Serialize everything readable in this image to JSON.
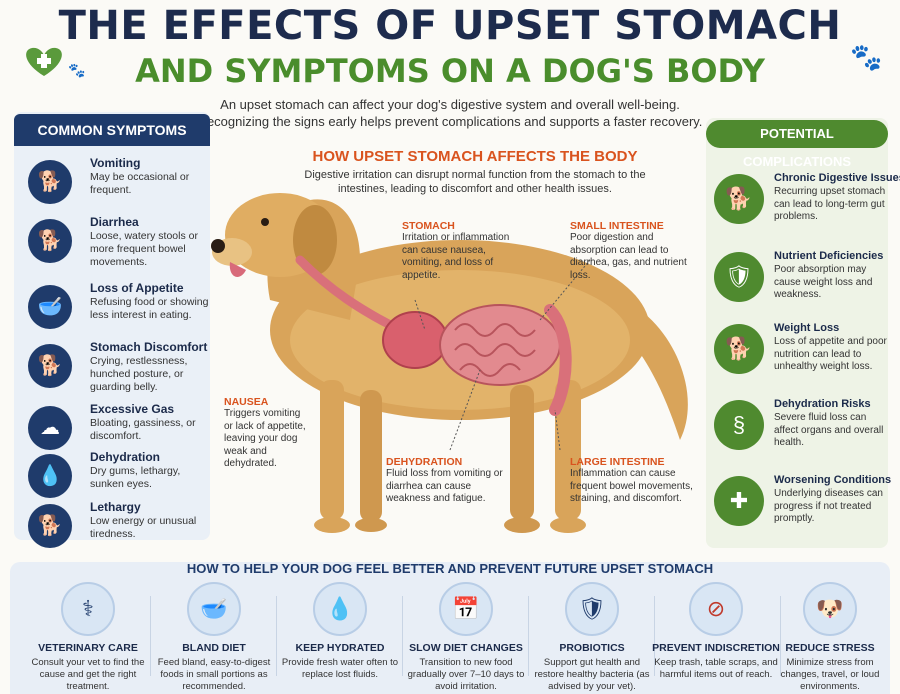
{
  "title_line1": "THE EFFECTS OF UPSET STOMACH",
  "title_line2": "AND SYMPTOMS ON A DOG'S BODY",
  "intro": [
    "An upset stomach can affect your dog's digestive system and overall well-being.",
    "Recognizing the signs early helps prevent complications and supports a faster recovery."
  ],
  "symptoms": {
    "heading": "COMMON SYMPTOMS",
    "items": [
      {
        "title": "Vomiting",
        "desc": "May be occasional or frequent.",
        "icon": "vomiting-dog-icon"
      },
      {
        "title": "Diarrhea",
        "desc": "Loose, watery stools or more frequent bowel movements.",
        "icon": "diarrhea-dog-icon"
      },
      {
        "title": "Loss of Appetite",
        "desc": "Refusing food or showing less interest in eating.",
        "icon": "food-bowl-icon"
      },
      {
        "title": "Stomach Discomfort",
        "desc": "Crying, restlessness, hunched posture, or guarding belly.",
        "icon": "uncomfortable-dog-icon"
      },
      {
        "title": "Excessive Gas",
        "desc": "Bloating, gassiness, or discomfort.",
        "icon": "gas-cloud-icon"
      },
      {
        "title": "Dehydration",
        "desc": "Dry gums, lethargy, sunken eyes.",
        "icon": "water-drop-icon"
      },
      {
        "title": "Lethargy",
        "desc": "Low energy or unusual tiredness.",
        "icon": "tired-dog-icon"
      }
    ]
  },
  "center": {
    "heading": "HOW UPSET STOMACH AFFECTS THE BODY",
    "desc": "Digestive irritation can disrupt normal function from the stomach to the intestines, leading to discomfort and other health issues.",
    "organs": {
      "stomach": {
        "title": "STOMACH",
        "desc": "Irritation or inflammation can cause nausea, vomiting, and loss of appetite."
      },
      "small_intestine": {
        "title": "SMALL INTESTINE",
        "desc": "Poor digestion and absorption can lead to diarrhea, gas, and nutrient loss."
      },
      "nausea": {
        "title": "NAUSEA",
        "desc": "Triggers vomiting or lack of appetite, leaving your dog weak and dehydrated."
      },
      "dehydration": {
        "title": "DEHYDRATION",
        "desc": "Fluid loss from vomiting or diarrhea can cause weakness and fatigue."
      },
      "large_intestine": {
        "title": "LARGE INTESTINE",
        "desc": "Inflammation can cause frequent bowel movements, straining, and discomfort."
      }
    }
  },
  "complications": {
    "heading": "POTENTIAL COMPLICATIONS",
    "items": [
      {
        "title": "Chronic Digestive Issues",
        "desc": "Recurring upset stomach can lead to long-term gut problems.",
        "icon": "resting-dog-icon"
      },
      {
        "title": "Nutrient Deficiencies",
        "desc": "Poor absorption may cause weight loss and weakness.",
        "icon": "shield-leaf-icon"
      },
      {
        "title": "Weight Loss",
        "desc": "Loss of appetite and poor nutrition can lead to unhealthy weight loss.",
        "icon": "thin-dog-icon"
      },
      {
        "title": "Dehydration Risks",
        "desc": "Severe fluid loss can affect organs and overall health.",
        "icon": "intestine-icon"
      },
      {
        "title": "Worsening Conditions",
        "desc": "Underlying diseases can progress if not treated promptly.",
        "icon": "medical-cross-shield-icon"
      }
    ]
  },
  "tips": {
    "heading": "HOW TO HELP YOUR DOG FEEL BETTER AND PREVENT FUTURE UPSET STOMACH",
    "items": [
      {
        "title": "VETERINARY CARE",
        "desc": "Consult your vet to find the cause and get the right treatment.",
        "icon": "veterinarian-icon"
      },
      {
        "title": "BLAND DIET",
        "desc": "Feed bland, easy-to-digest foods in small portions as recommended.",
        "icon": "food-bowl-icon"
      },
      {
        "title": "KEEP HYDRATED",
        "desc": "Provide fresh water often to replace lost fluids.",
        "icon": "water-drop-icon"
      },
      {
        "title": "SLOW DIET CHANGES",
        "desc": "Transition to new food gradually over 7–10 days to avoid irritation.",
        "icon": "calendar-icon"
      },
      {
        "title": "PROBIOTICS",
        "desc": "Support gut health and restore healthy bacteria (as advised by your vet).",
        "icon": "probiotic-shield-icon"
      },
      {
        "title": "PREVENT INDISCRETION",
        "desc": "Keep trash, table scraps, and harmful items out of reach.",
        "icon": "no-trash-icon"
      },
      {
        "title": "REDUCE STRESS",
        "desc": "Minimize stress from changes, travel, or loud environments.",
        "icon": "happy-dog-icon"
      }
    ]
  },
  "colors": {
    "navy": "#1f3b6b",
    "green": "#4f8a2f",
    "orange": "#d9531e"
  }
}
